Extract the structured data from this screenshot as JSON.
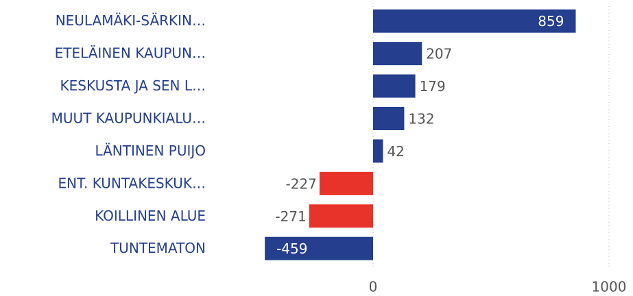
{
  "chart_data": {
    "type": "hbar",
    "categories": [
      "NEULAMÄKI-SÄRKIN…",
      "ETELÄINEN KAUPUN…",
      "KESKUSTA JA SEN L…",
      "MUUT KAUPUNKIALU…",
      "LÄNTINEN PUIJO",
      "ENT. KUNTAKESKUK…",
      "KOILLINEN ALUE",
      "TUNTEMATON"
    ],
    "values": [
      859,
      207,
      179,
      132,
      42,
      -227,
      -271,
      -459
    ],
    "colors": [
      "#253f8e",
      "#253f8e",
      "#253f8e",
      "#253f8e",
      "#253f8e",
      "#e8332a",
      "#e8332a",
      "#253f8e"
    ],
    "xlim": [
      -500,
      1000
    ],
    "xticks": [
      0,
      1000
    ],
    "grid": true
  }
}
